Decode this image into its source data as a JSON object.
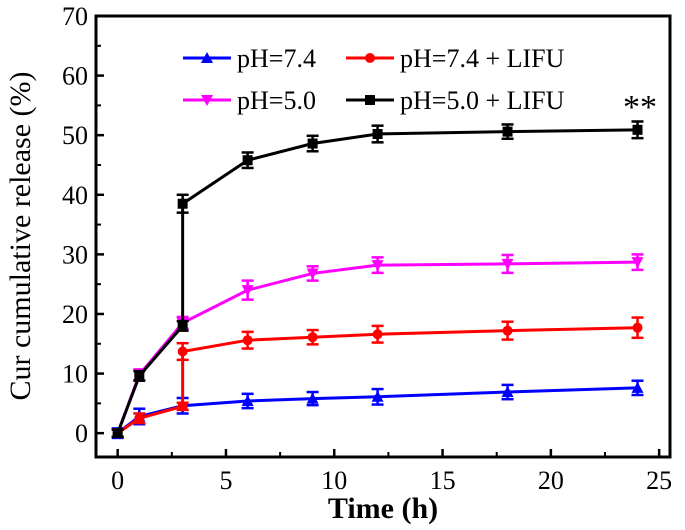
{
  "chart_data": {
    "type": "line",
    "title": "",
    "xlabel": "Time (h)",
    "ylabel": "Cur cumulative release (%)",
    "xlim": [
      -1,
      25.5
    ],
    "ylim": [
      -4,
      70
    ],
    "xticks": [
      0,
      5,
      10,
      15,
      20,
      25
    ],
    "yticks": [
      0,
      10,
      20,
      30,
      40,
      50,
      60,
      70
    ],
    "grid": false,
    "legend_position": "top-center",
    "annotation": "**",
    "series": [
      {
        "name": "pH=7.4",
        "color": "#0000ff",
        "marker": "triangle-up",
        "x": [
          0,
          1,
          3,
          6,
          9,
          12,
          18,
          24
        ],
        "y": [
          0,
          2.8,
          4.6,
          5.4,
          5.8,
          6.1,
          6.9,
          7.6
        ],
        "err": [
          0.8,
          1.3,
          1.3,
          1.2,
          1.1,
          1.3,
          1.2,
          1.2
        ]
      },
      {
        "name": "pH=7.4 + LIFU",
        "color": "#ff0000",
        "marker": "circle",
        "x": [
          0,
          1,
          3,
          3,
          6,
          9,
          12,
          18,
          24
        ],
        "y": [
          0,
          2.5,
          4.5,
          13.7,
          15.6,
          16.1,
          16.6,
          17.2,
          17.7
        ],
        "err": [
          0.6,
          0.8,
          0.6,
          1.4,
          1.4,
          1.2,
          1.4,
          1.5,
          1.7
        ]
      },
      {
        "name": "pH=5.0",
        "color": "#ff00ff",
        "marker": "triangle-down",
        "x": [
          0,
          1,
          3,
          6,
          9,
          12,
          18,
          24
        ],
        "y": [
          0,
          9.8,
          18.5,
          24.0,
          26.8,
          28.2,
          28.4,
          28.7
        ],
        "err": [
          0.6,
          0.9,
          1.0,
          1.6,
          1.2,
          1.3,
          1.5,
          1.3
        ]
      },
      {
        "name": "pH=5.0 + LIFU",
        "color": "#000000",
        "marker": "square",
        "x": [
          0,
          1,
          3,
          3,
          6,
          9,
          12,
          18,
          24
        ],
        "y": [
          0,
          9.6,
          18.0,
          38.5,
          45.8,
          48.6,
          50.2,
          50.6,
          50.9
        ],
        "err": [
          0.6,
          0.8,
          0.8,
          1.5,
          1.3,
          1.3,
          1.4,
          1.2,
          1.4
        ]
      }
    ]
  }
}
